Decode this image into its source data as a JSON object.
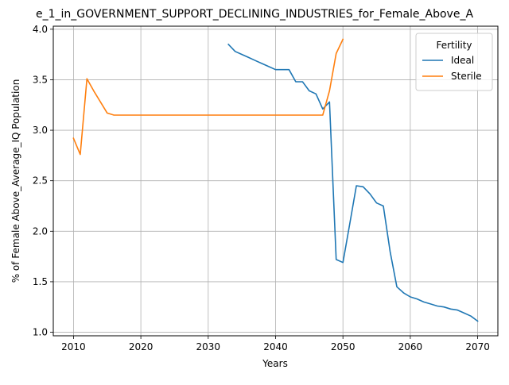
{
  "chart_data": {
    "type": "line",
    "title": "e_1_in_GOVERNMENT_SUPPORT_DECLINING_INDUSTRIES_for_Female_Above_A",
    "xlabel": "Years",
    "ylabel": "% of Female Above_Average_IQ Population",
    "xlim": [
      2007,
      2073
    ],
    "ylim": [
      0.965,
      4.03
    ],
    "xticks": [
      2010,
      2020,
      2030,
      2040,
      2050,
      2060,
      2070
    ],
    "xtick_labels": [
      "2010",
      "2020",
      "2030",
      "2040",
      "2050",
      "2060",
      "2070"
    ],
    "yticks": [
      1.0,
      1.5,
      2.0,
      2.5,
      3.0,
      3.5,
      4.0
    ],
    "ytick_labels": [
      "1.0",
      "1.5",
      "2.0",
      "2.5",
      "3.0",
      "3.5",
      "4.0"
    ],
    "grid": true,
    "legend": {
      "title": "Fertility",
      "position": "top-right"
    },
    "series": [
      {
        "name": "Ideal",
        "color": "#1f77b4",
        "x": [
          2033,
          2034,
          2035,
          2036,
          2037,
          2038,
          2039,
          2040,
          2041,
          2042,
          2043,
          2044,
          2045,
          2046,
          2047,
          2048,
          2049,
          2050,
          2051,
          2052,
          2053,
          2054,
          2055,
          2056,
          2057,
          2058,
          2059,
          2060,
          2061,
          2062,
          2063,
          2064,
          2065,
          2066,
          2067,
          2068,
          2069,
          2070
        ],
        "y": [
          3.85,
          3.78,
          3.75,
          3.72,
          3.69,
          3.66,
          3.63,
          3.6,
          3.6,
          3.6,
          3.48,
          3.48,
          3.39,
          3.36,
          3.21,
          3.28,
          1.72,
          1.69,
          2.07,
          2.45,
          2.44,
          2.37,
          2.28,
          2.25,
          1.8,
          1.45,
          1.39,
          1.35,
          1.33,
          1.3,
          1.28,
          1.26,
          1.25,
          1.23,
          1.22,
          1.19,
          1.16,
          1.11
        ]
      },
      {
        "name": "Sterile",
        "color": "#ff7f0e",
        "x": [
          2010,
          2011,
          2012,
          2013,
          2014,
          2015,
          2016,
          2017,
          2020,
          2025,
          2030,
          2035,
          2040,
          2045,
          2046,
          2047,
          2048,
          2049,
          2050
        ],
        "y": [
          2.92,
          2.76,
          3.51,
          3.39,
          3.28,
          3.17,
          3.15,
          3.15,
          3.15,
          3.15,
          3.15,
          3.15,
          3.15,
          3.15,
          3.15,
          3.15,
          3.39,
          3.76,
          3.9
        ]
      }
    ]
  }
}
